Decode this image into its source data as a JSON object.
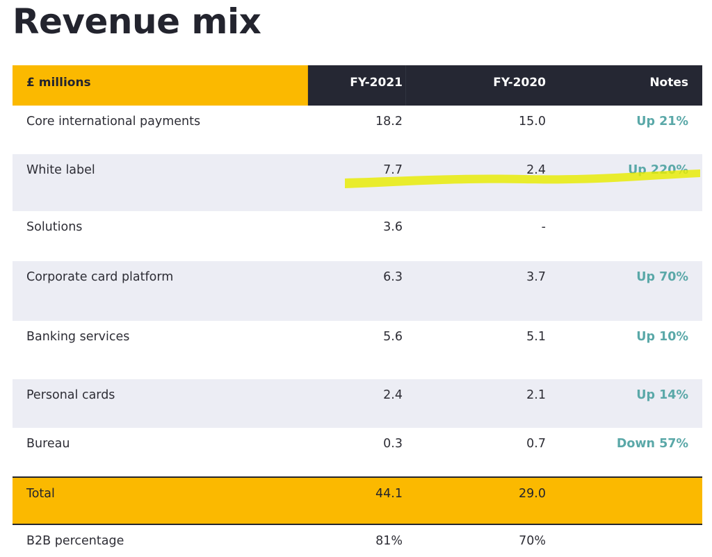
{
  "title": "Revenue mix",
  "header": {
    "col_label": "£ millions",
    "col_fy2021": "FY-2021",
    "col_fy2020": "FY-2020",
    "col_notes": "Notes"
  },
  "rows": [
    {
      "label": "Core international payments",
      "fy2021": "18.2",
      "fy2020": "15.0",
      "note": "Up 21%"
    },
    {
      "label": "White label",
      "fy2021": "7.7",
      "fy2020": "2.4",
      "note": "Up 220%"
    },
    {
      "label": "Solutions",
      "fy2021": "3.6",
      "fy2020": "-",
      "note": ""
    },
    {
      "label": "Corporate card platform",
      "fy2021": "6.3",
      "fy2020": "3.7",
      "note": "Up 70%"
    },
    {
      "label": "Banking services",
      "fy2021": "5.6",
      "fy2020": "5.1",
      "note": "Up 10%"
    },
    {
      "label": "Personal cards",
      "fy2021": "2.4",
      "fy2020": "2.1",
      "note": "Up 14%"
    },
    {
      "label": "Bureau",
      "fy2021": "0.3",
      "fy2020": "0.7",
      "note": "Down 57%"
    }
  ],
  "total": {
    "label": "Total",
    "fy2021": "44.1",
    "fy2020": "29.0",
    "note": ""
  },
  "b2b": {
    "label": "B2B percentage",
    "fy2021": "81%",
    "fy2020": "70%",
    "note": ""
  },
  "colors": {
    "accent_yellow": "#fbb900",
    "header_dark": "#252733",
    "note_teal": "#5aa8a8",
    "shade": "#ecedf4",
    "highlighter": "#e8ec00"
  }
}
